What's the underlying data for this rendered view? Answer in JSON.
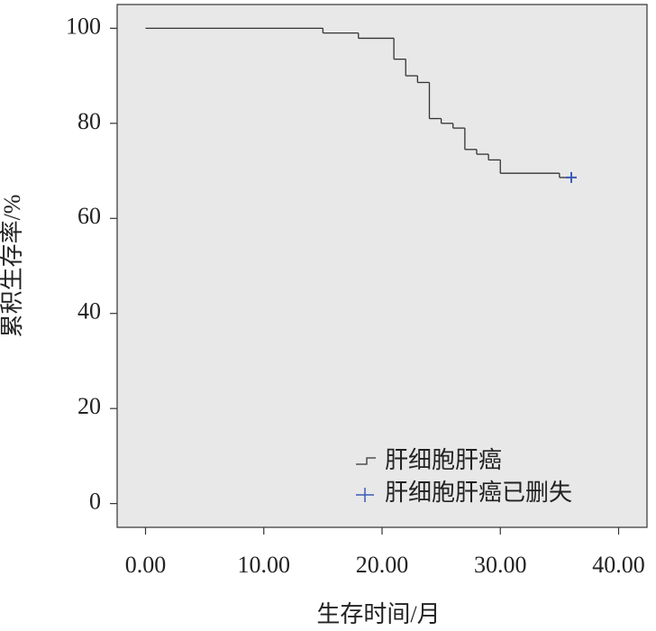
{
  "chart_data": {
    "type": "step",
    "x_label": "生存时间/月",
    "y_label": "累积生存率/%",
    "xlim": [
      -2.4,
      42.4
    ],
    "ylim": [
      -5,
      105
    ],
    "xticks": [
      {
        "value": 0,
        "label": "0.00"
      },
      {
        "value": 10,
        "label": "10.00"
      },
      {
        "value": 20,
        "label": "20.00"
      },
      {
        "value": 30,
        "label": "30.00"
      },
      {
        "value": 40,
        "label": "40.00"
      }
    ],
    "yticks": [
      0,
      20,
      40,
      60,
      80,
      100
    ],
    "background": "#e8e8e8",
    "legend": "lower right",
    "series": [
      {
        "name": "肝细胞肝癌",
        "color": "#333333",
        "marker": "step",
        "x": [
          0,
          15,
          18,
          21,
          22,
          23,
          24,
          25,
          26,
          27,
          28,
          29,
          30,
          35,
          36
        ],
        "values": [
          100,
          99,
          97.9,
          93.5,
          90,
          88.6,
          81,
          80,
          79,
          74.5,
          73.5,
          72.3,
          69.5,
          68.6,
          68.6
        ]
      },
      {
        "name": "肝细胞肝癌已删失",
        "color": "#3a5bb5",
        "marker": "plus",
        "x": [
          36
        ],
        "values": [
          68.6
        ]
      }
    ]
  }
}
